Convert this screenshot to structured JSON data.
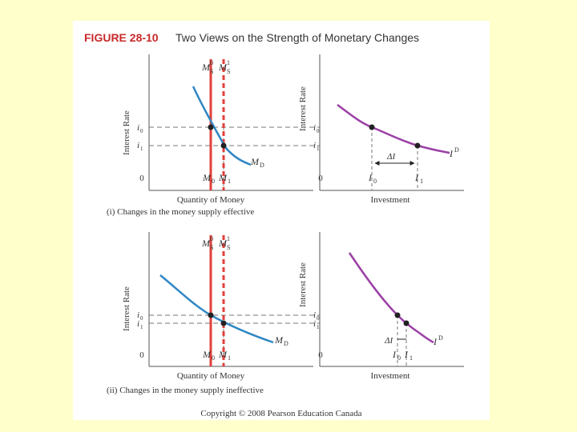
{
  "figure": {
    "label": "FIGURE 28-10",
    "title": "Two Views on the Strength of Monetary Changes",
    "copyright": "Copyright © 2008 Pearson Education Canada"
  },
  "colors": {
    "background": "#ffffcc",
    "money_supply": "#e0403a",
    "money_demand": "#2f87c4",
    "investment_demand": "#9b3fa6",
    "accent_red": "#c8292b"
  },
  "panels": [
    {
      "caption": "(i) Changes in the money supply effective",
      "money_market": {
        "ylabel": "Interest Rate",
        "xlabel": "Quantity of Money",
        "origin": "0",
        "supply_labels": [
          "M",
          "M"
        ],
        "supply_sups": [
          "0",
          "1"
        ],
        "supply_subs": [
          "S",
          "S"
        ],
        "demand_label": "M",
        "demand_sub": "D",
        "rate_labels": [
          "i",
          "i"
        ],
        "rate_subs": [
          "0",
          "1"
        ],
        "quantity_labels": [
          "M",
          "M"
        ],
        "quantity_subs": [
          "0",
          "1"
        ]
      },
      "investment_market": {
        "ylabel": "Interest Rate",
        "xlabel": "Investment",
        "origin": "0",
        "rate_labels": [
          "i",
          "i"
        ],
        "rate_subs": [
          "0",
          "1"
        ],
        "invest_labels": [
          "I",
          "I"
        ],
        "invest_subs": [
          "0",
          "1"
        ],
        "delta_label": "ΔI",
        "demand_label": "I",
        "demand_sup": "D"
      }
    },
    {
      "caption": "(ii) Changes in the money supply ineffective",
      "money_market": {
        "ylabel": "Interest Rate",
        "xlabel": "Quantity of Money",
        "origin": "0",
        "supply_labels": [
          "M",
          "M"
        ],
        "supply_sups": [
          "0",
          "1"
        ],
        "supply_subs": [
          "S",
          "S"
        ],
        "demand_label": "M",
        "demand_sub": "D",
        "rate_labels": [
          "i",
          "i"
        ],
        "rate_subs": [
          "0",
          "1"
        ],
        "quantity_labels": [
          "M",
          "M"
        ],
        "quantity_subs": [
          "0",
          "1"
        ]
      },
      "investment_market": {
        "ylabel": "Interest Rate",
        "xlabel": "Investment",
        "origin": "0",
        "rate_labels": [
          "i",
          "i"
        ],
        "rate_subs": [
          "0",
          "1"
        ],
        "invest_labels": [
          "I",
          "I"
        ],
        "invest_subs": [
          "0",
          "1"
        ],
        "delta_label": "ΔI",
        "demand_label": "I",
        "demand_sup": "D"
      }
    }
  ]
}
